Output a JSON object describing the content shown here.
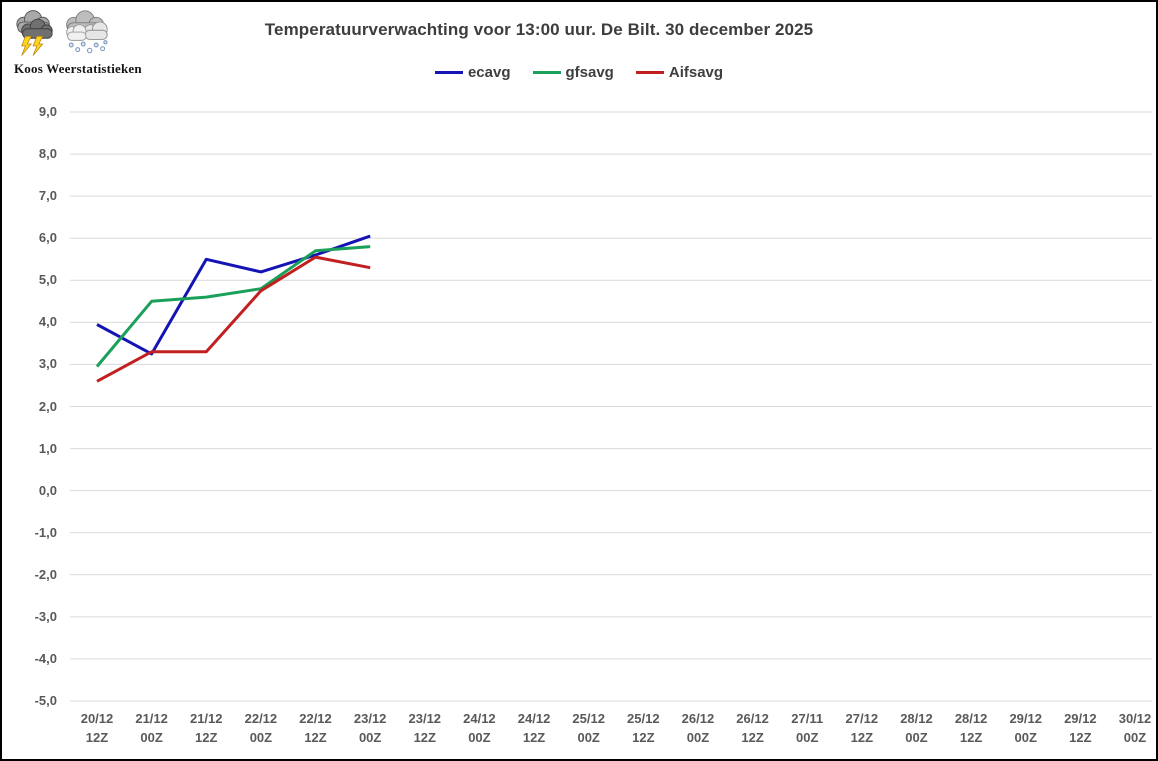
{
  "branding": {
    "name": "Koos Weerstatistieken"
  },
  "chart_data": {
    "type": "line",
    "title": "Temperatuurverwachting voor 13:00 uur. De Bilt. 30 december 2025",
    "categories": [
      {
        "date": "20/12",
        "hour": "12Z"
      },
      {
        "date": "21/12",
        "hour": "00Z"
      },
      {
        "date": "21/12",
        "hour": "12Z"
      },
      {
        "date": "22/12",
        "hour": "00Z"
      },
      {
        "date": "22/12",
        "hour": "12Z"
      },
      {
        "date": "23/12",
        "hour": "00Z"
      },
      {
        "date": "23/12",
        "hour": "12Z"
      },
      {
        "date": "24/12",
        "hour": "00Z"
      },
      {
        "date": "24/12",
        "hour": "12Z"
      },
      {
        "date": "25/12",
        "hour": "00Z"
      },
      {
        "date": "25/12",
        "hour": "12Z"
      },
      {
        "date": "26/12",
        "hour": "00Z"
      },
      {
        "date": "26/12",
        "hour": "12Z"
      },
      {
        "date": "27/11",
        "hour": "00Z"
      },
      {
        "date": "27/12",
        "hour": "12Z"
      },
      {
        "date": "28/12",
        "hour": "00Z"
      },
      {
        "date": "28/12",
        "hour": "12Z"
      },
      {
        "date": "29/12",
        "hour": "00Z"
      },
      {
        "date": "29/12",
        "hour": "12Z"
      },
      {
        "date": "30/12",
        "hour": "00Z"
      }
    ],
    "series": [
      {
        "name": "ecavg",
        "color": "#1414b4",
        "values": [
          3.95,
          3.25,
          5.5,
          5.2,
          5.6,
          6.05
        ]
      },
      {
        "name": "gfsavg",
        "color": "#1aa05a",
        "values": [
          2.95,
          4.5,
          4.6,
          4.8,
          5.7,
          5.8
        ]
      },
      {
        "name": "Aifsavg",
        "color": "#c22020",
        "values": [
          2.6,
          3.3,
          3.3,
          4.75,
          5.55,
          5.3
        ]
      }
    ],
    "ylim": [
      -5.0,
      9.0
    ],
    "ytick_step": 1.0,
    "ytick_labels": [
      "9,0",
      "8,0",
      "7,0",
      "6,0",
      "5,0",
      "4,0",
      "3,0",
      "2,0",
      "1,0",
      "0,0",
      "-1,0",
      "-2,0",
      "-3,0",
      "-4,0",
      "-5,0"
    ],
    "decimal_separator": ",",
    "grid": true,
    "legend_position": "top-center"
  },
  "colors": {
    "grid": "#d9d9d9",
    "axis_text": "#595959",
    "title_text": "#3d3d3d",
    "background": "#ffffff",
    "border": "#000000"
  }
}
